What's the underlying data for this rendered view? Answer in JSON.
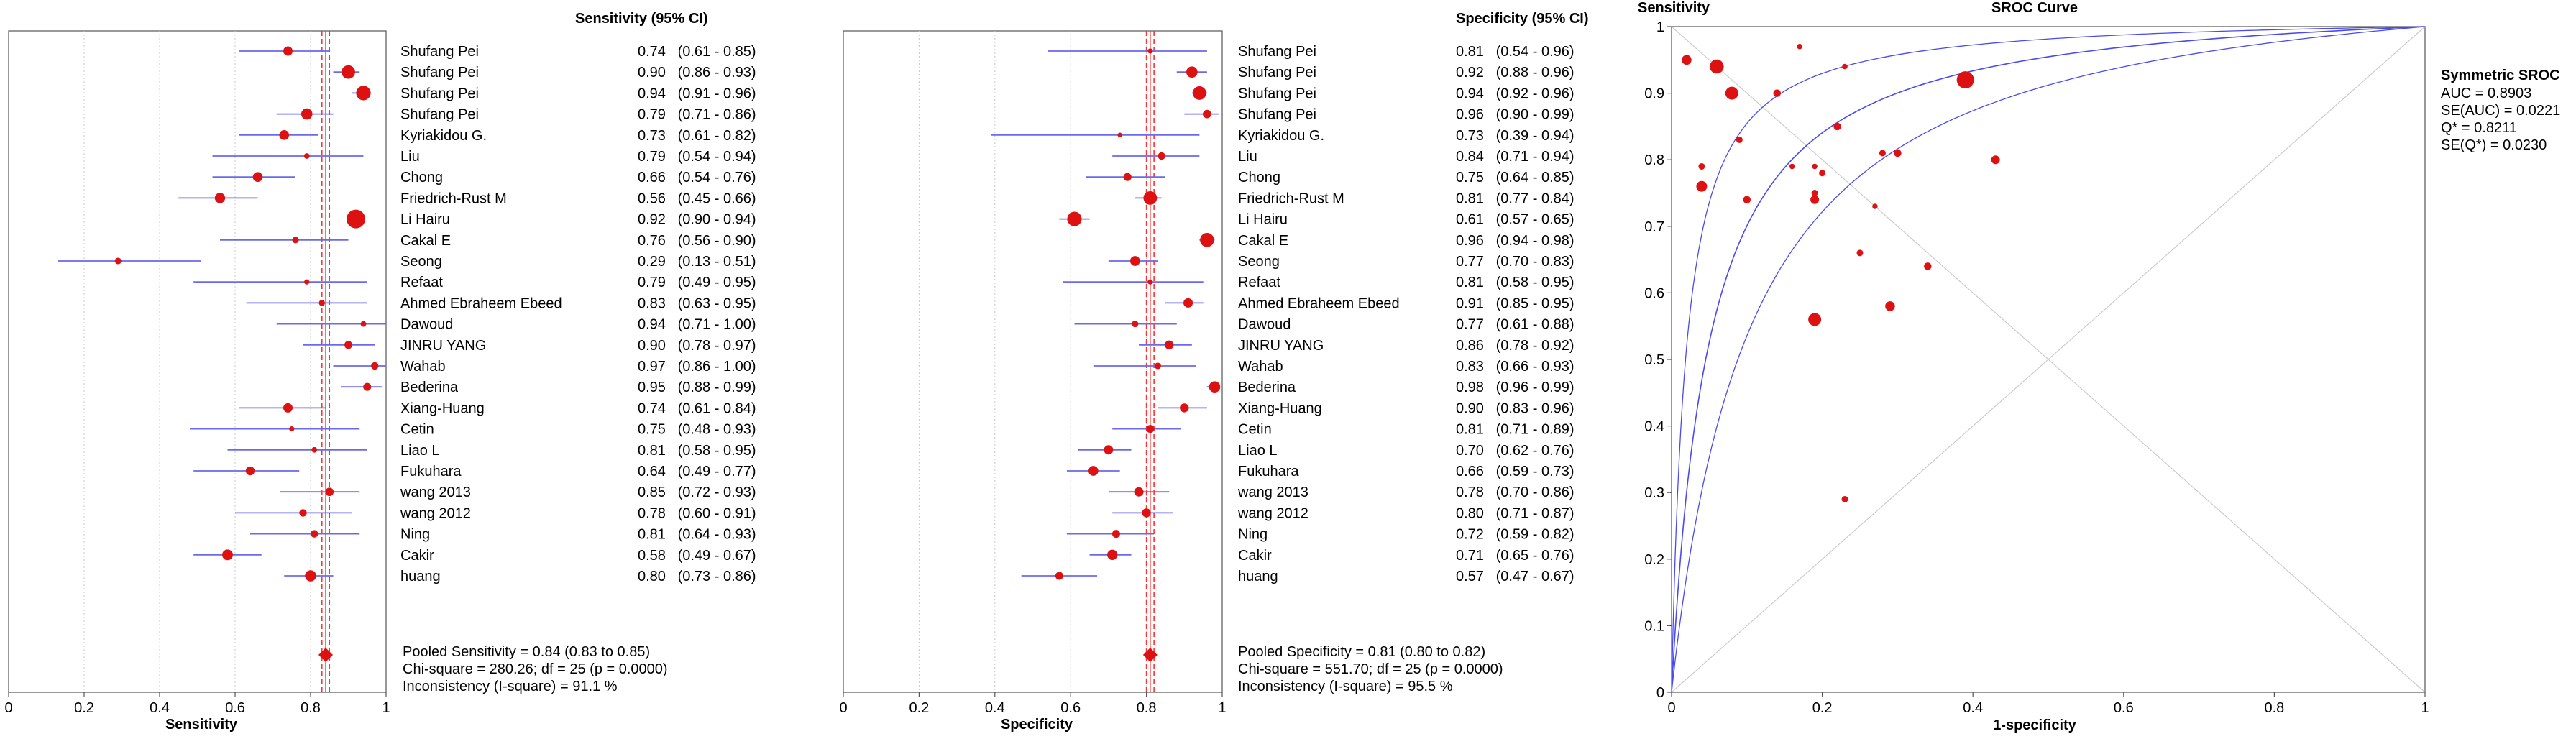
{
  "colors": {
    "point": "#dd1111",
    "ci_line": "#6a6aee",
    "pooled_line": "#ff3333",
    "grid": "#c8c8c8",
    "axis": "#555555",
    "sroc_curve": "#4a4aee",
    "diagonal": "#cccccc"
  },
  "chart_data": [
    {
      "type": "forest",
      "id": "sensitivity",
      "xlabel": "Sensitivity",
      "xlim": [
        0,
        1
      ],
      "xticks": [
        "0",
        "0.2",
        "0.4",
        "0.6",
        "0.8",
        "1"
      ],
      "tick_values": [
        0,
        0.2,
        0.4,
        0.6,
        0.8,
        1
      ],
      "column_header": "Sensitivity (95% CI)",
      "studies": [
        {
          "name": "Shufang Pei",
          "est": 0.74,
          "lo": 0.61,
          "hi": 0.85,
          "text": "0.74   (0.61 - 0.85)",
          "weight": 1.0
        },
        {
          "name": "Shufang Pei",
          "est": 0.9,
          "lo": 0.86,
          "hi": 0.93,
          "text": "0.90   (0.86 - 0.93)",
          "weight": 1.45
        },
        {
          "name": "Shufang Pei",
          "est": 0.94,
          "lo": 0.91,
          "hi": 0.96,
          "text": "0.94   (0.91 - 0.96)",
          "weight": 1.55
        },
        {
          "name": "Shufang Pei",
          "est": 0.79,
          "lo": 0.71,
          "hi": 0.86,
          "text": "0.79   (0.71 - 0.86)",
          "weight": 1.2
        },
        {
          "name": "Kyriakidou G.",
          "est": 0.73,
          "lo": 0.61,
          "hi": 0.82,
          "text": "0.73   (0.61 - 0.82)",
          "weight": 1.05
        },
        {
          "name": "Liu",
          "est": 0.79,
          "lo": 0.54,
          "hi": 0.94,
          "text": "0.79   (0.54 - 0.94)",
          "weight": 0.6
        },
        {
          "name": "Chong",
          "est": 0.66,
          "lo": 0.54,
          "hi": 0.76,
          "text": "0.66   (0.54 - 0.76)",
          "weight": 1.05
        },
        {
          "name": "Friedrich-Rust M",
          "est": 0.56,
          "lo": 0.45,
          "hi": 0.66,
          "text": "0.56   (0.45 - 0.66)",
          "weight": 1.1
        },
        {
          "name": "Li Hairu",
          "est": 0.92,
          "lo": 0.9,
          "hi": 0.94,
          "text": "0.92   (0.90 - 0.94)",
          "weight": 2.0
        },
        {
          "name": "Cakal E",
          "est": 0.76,
          "lo": 0.56,
          "hi": 0.9,
          "text": "0.76   (0.56 - 0.90)",
          "weight": 0.7
        },
        {
          "name": "Seong",
          "est": 0.29,
          "lo": 0.13,
          "hi": 0.51,
          "text": "0.29   (0.13 - 0.51)",
          "weight": 0.7
        },
        {
          "name": "Refaat",
          "est": 0.79,
          "lo": 0.49,
          "hi": 0.95,
          "text": "0.79   (0.49 - 0.95)",
          "weight": 0.55
        },
        {
          "name": "Ahmed Ebraheem Ebeed",
          "est": 0.83,
          "lo": 0.63,
          "hi": 0.95,
          "text": "0.83   (0.63 - 0.95)",
          "weight": 0.65
        },
        {
          "name": "Dawoud",
          "est": 0.94,
          "lo": 0.71,
          "hi": 1.0,
          "text": "0.94   (0.71 - 1.00)",
          "weight": 0.6
        },
        {
          "name": "JINRU YANG",
          "est": 0.9,
          "lo": 0.78,
          "hi": 0.97,
          "text": "0.90   (0.78 - 0.97)",
          "weight": 0.85
        },
        {
          "name": "Wahab",
          "est": 0.97,
          "lo": 0.86,
          "hi": 1.0,
          "text": "0.97   (0.86 - 1.00)",
          "weight": 0.8
        },
        {
          "name": "Bederina",
          "est": 0.95,
          "lo": 0.88,
          "hi": 0.99,
          "text": "0.95   (0.88 - 0.99)",
          "weight": 0.85
        },
        {
          "name": "Xiang-Huang",
          "est": 0.74,
          "lo": 0.61,
          "hi": 0.84,
          "text": "0.74   (0.61 - 0.84)",
          "weight": 1.0
        },
        {
          "name": "Cetin",
          "est": 0.75,
          "lo": 0.48,
          "hi": 0.93,
          "text": "0.75   (0.48 - 0.93)",
          "weight": 0.55
        },
        {
          "name": "Liao L",
          "est": 0.81,
          "lo": 0.58,
          "hi": 0.95,
          "text": "0.81   (0.58 - 0.95)",
          "weight": 0.6
        },
        {
          "name": "Fukuhara",
          "est": 0.64,
          "lo": 0.49,
          "hi": 0.77,
          "text": "0.64   (0.49 - 0.77)",
          "weight": 0.95
        },
        {
          "name": "wang 2013",
          "est": 0.85,
          "lo": 0.72,
          "hi": 0.93,
          "text": "0.85   (0.72 - 0.93)",
          "weight": 0.9
        },
        {
          "name": "wang 2012",
          "est": 0.78,
          "lo": 0.6,
          "hi": 0.91,
          "text": "0.78   (0.60 - 0.91)",
          "weight": 0.8
        },
        {
          "name": "Ning",
          "est": 0.81,
          "lo": 0.64,
          "hi": 0.93,
          "text": "0.81   (0.64 - 0.93)",
          "weight": 0.8
        },
        {
          "name": "Cakir",
          "est": 0.58,
          "lo": 0.49,
          "hi": 0.67,
          "text": "0.58   (0.49 - 0.67)",
          "weight": 1.15
        },
        {
          "name": "huang",
          "est": 0.8,
          "lo": 0.73,
          "hi": 0.86,
          "text": "0.80   (0.73 - 0.86)",
          "weight": 1.2
        }
      ],
      "pooled": {
        "est": 0.84,
        "lo": 0.83,
        "hi": 0.85
      },
      "summary": [
        "Pooled Sensitivity = 0.84 (0.83 to 0.85)",
        "Chi-square = 280.26; df =  25 (p = 0.0000)",
        "Inconsistency (I-square) = 91.1 %"
      ]
    },
    {
      "type": "forest",
      "id": "specificity",
      "xlabel": "Specificity",
      "xlim": [
        0,
        1
      ],
      "xticks": [
        "0",
        "0.2",
        "0.4",
        "0.6",
        "0.8",
        "1"
      ],
      "tick_values": [
        0,
        0.2,
        0.4,
        0.6,
        0.8,
        1
      ],
      "column_header": "Specificity (95% CI)",
      "studies": [
        {
          "name": "Shufang Pei",
          "est": 0.81,
          "lo": 0.54,
          "hi": 0.96,
          "text": "0.81   (0.54 - 0.96)",
          "weight": 0.55
        },
        {
          "name": "Shufang Pei",
          "est": 0.92,
          "lo": 0.88,
          "hi": 0.96,
          "text": "0.92   (0.88 - 0.96)",
          "weight": 1.2
        },
        {
          "name": "Shufang Pei",
          "est": 0.94,
          "lo": 0.92,
          "hi": 0.96,
          "text": "0.94   (0.92 - 0.96)",
          "weight": 1.45
        },
        {
          "name": "Shufang Pei",
          "est": 0.96,
          "lo": 0.9,
          "hi": 0.99,
          "text": "0.96   (0.90 - 0.99)",
          "weight": 0.9
        },
        {
          "name": "Kyriakidou G.",
          "est": 0.73,
          "lo": 0.39,
          "hi": 0.94,
          "text": "0.73   (0.39 - 0.94)",
          "weight": 0.5
        },
        {
          "name": "Liu",
          "est": 0.84,
          "lo": 0.71,
          "hi": 0.94,
          "text": "0.84   (0.71 - 0.94)",
          "weight": 0.8
        },
        {
          "name": "Chong",
          "est": 0.75,
          "lo": 0.64,
          "hi": 0.85,
          "text": "0.75   (0.64 - 0.85)",
          "weight": 0.85
        },
        {
          "name": "Friedrich-Rust M",
          "est": 0.81,
          "lo": 0.77,
          "hi": 0.84,
          "text": "0.81   (0.77 - 0.84)",
          "weight": 1.45
        },
        {
          "name": "Li Hairu",
          "est": 0.61,
          "lo": 0.57,
          "hi": 0.65,
          "text": "0.61   (0.57 - 0.65)",
          "weight": 1.55
        },
        {
          "name": "Cakal E",
          "est": 0.96,
          "lo": 0.94,
          "hi": 0.98,
          "text": "0.96   (0.94 - 0.98)",
          "weight": 1.5
        },
        {
          "name": "Seong",
          "est": 0.77,
          "lo": 0.7,
          "hi": 0.83,
          "text": "0.77   (0.70 - 0.83)",
          "weight": 1.05
        },
        {
          "name": "Refaat",
          "est": 0.81,
          "lo": 0.58,
          "hi": 0.95,
          "text": "0.81   (0.58 - 0.95)",
          "weight": 0.55
        },
        {
          "name": "Ahmed Ebraheem Ebeed",
          "est": 0.91,
          "lo": 0.85,
          "hi": 0.95,
          "text": "0.91   (0.85 - 0.95)",
          "weight": 1.0
        },
        {
          "name": "Dawoud",
          "est": 0.77,
          "lo": 0.61,
          "hi": 0.88,
          "text": "0.77   (0.61 - 0.88)",
          "weight": 0.7
        },
        {
          "name": "JINRU YANG",
          "est": 0.86,
          "lo": 0.78,
          "hi": 0.92,
          "text": "0.86   (0.78 - 0.92)",
          "weight": 0.95
        },
        {
          "name": "Wahab",
          "est": 0.83,
          "lo": 0.66,
          "hi": 0.93,
          "text": "0.83   (0.66 - 0.93)",
          "weight": 0.7
        },
        {
          "name": "Bederina",
          "est": 0.98,
          "lo": 0.96,
          "hi": 0.99,
          "text": "0.98   (0.96 - 0.99)",
          "weight": 1.2
        },
        {
          "name": "Xiang-Huang",
          "est": 0.9,
          "lo": 0.83,
          "hi": 0.96,
          "text": "0.90   (0.83 - 0.96)",
          "weight": 0.95
        },
        {
          "name": "Cetin",
          "est": 0.81,
          "lo": 0.71,
          "hi": 0.89,
          "text": "0.81   (0.71 - 0.89)",
          "weight": 0.85
        },
        {
          "name": "Liao L",
          "est": 0.7,
          "lo": 0.62,
          "hi": 0.76,
          "text": "0.70   (0.62 - 0.76)",
          "weight": 1.0
        },
        {
          "name": "Fukuhara",
          "est": 0.66,
          "lo": 0.59,
          "hi": 0.73,
          "text": "0.66   (0.59 - 0.73)",
          "weight": 1.05
        },
        {
          "name": "wang 2013",
          "est": 0.78,
          "lo": 0.7,
          "hi": 0.86,
          "text": "0.78   (0.70 - 0.86)",
          "weight": 1.0
        },
        {
          "name": "wang 2012",
          "est": 0.8,
          "lo": 0.71,
          "hi": 0.87,
          "text": "0.80   (0.71 - 0.87)",
          "weight": 0.95
        },
        {
          "name": "Ning",
          "est": 0.72,
          "lo": 0.59,
          "hi": 0.82,
          "text": "0.72   (0.59 - 0.82)",
          "weight": 0.85
        },
        {
          "name": "Cakir",
          "est": 0.71,
          "lo": 0.65,
          "hi": 0.76,
          "text": "0.71   (0.65 - 0.76)",
          "weight": 1.1
        },
        {
          "name": "huang",
          "est": 0.57,
          "lo": 0.47,
          "hi": 0.67,
          "text": "0.57   (0.47 - 0.67)",
          "weight": 0.85
        }
      ],
      "pooled": {
        "est": 0.81,
        "lo": 0.8,
        "hi": 0.82
      },
      "summary": [
        "Pooled Specificity = 0.81 (0.80 to 0.82)",
        "Chi-square = 551.70; df =  25 (p = 0.0000)",
        "Inconsistency (I-square) = 95.5 %"
      ]
    },
    {
      "type": "scatter",
      "id": "sroc",
      "title": "SROC Curve",
      "ylabel": "Sensitivity",
      "xlabel": "1-specificity",
      "xlim": [
        0,
        1
      ],
      "ylim": [
        0,
        1
      ],
      "xticks": [
        "0",
        "0.2",
        "0.4",
        "0.6",
        "0.8",
        "1"
      ],
      "yticks": [
        "0",
        "0.1",
        "0.2",
        "0.3",
        "0.4",
        "0.5",
        "0.6",
        "0.7",
        "0.8",
        "0.9",
        "1"
      ],
      "tick_values": [
        0,
        0.2,
        0.4,
        0.6,
        0.8,
        1
      ],
      "ytick_values": [
        0,
        0.1,
        0.2,
        0.3,
        0.4,
        0.5,
        0.6,
        0.7,
        0.8,
        0.9,
        1
      ],
      "auc": 0.8903,
      "q_star": 0.8211,
      "legend_title": "Symmetric SROC",
      "legend_lines": [
        "AUC = 0.8903",
        "SE(AUC) = 0.0221",
        "Q* = 0.8211",
        "SE(Q*) = 0.0230"
      ],
      "points": [
        {
          "fpr": 0.19,
          "sens": 0.74,
          "weight": 0.8
        },
        {
          "fpr": 0.08,
          "sens": 0.9,
          "weight": 1.2
        },
        {
          "fpr": 0.06,
          "sens": 0.94,
          "weight": 1.3
        },
        {
          "fpr": 0.04,
          "sens": 0.79,
          "weight": 0.6
        },
        {
          "fpr": 0.27,
          "sens": 0.73,
          "weight": 0.5
        },
        {
          "fpr": 0.16,
          "sens": 0.79,
          "weight": 0.5
        },
        {
          "fpr": 0.25,
          "sens": 0.66,
          "weight": 0.6
        },
        {
          "fpr": 0.19,
          "sens": 0.56,
          "weight": 1.2
        },
        {
          "fpr": 0.39,
          "sens": 0.92,
          "weight": 1.6
        },
        {
          "fpr": 0.04,
          "sens": 0.76,
          "weight": 1.0
        },
        {
          "fpr": 0.23,
          "sens": 0.29,
          "weight": 0.6
        },
        {
          "fpr": 0.19,
          "sens": 0.79,
          "weight": 0.5
        },
        {
          "fpr": 0.09,
          "sens": 0.83,
          "weight": 0.6
        },
        {
          "fpr": 0.23,
          "sens": 0.94,
          "weight": 0.5
        },
        {
          "fpr": 0.14,
          "sens": 0.9,
          "weight": 0.7
        },
        {
          "fpr": 0.17,
          "sens": 0.97,
          "weight": 0.5
        },
        {
          "fpr": 0.02,
          "sens": 0.95,
          "weight": 0.9
        },
        {
          "fpr": 0.1,
          "sens": 0.74,
          "weight": 0.7
        },
        {
          "fpr": 0.19,
          "sens": 0.75,
          "weight": 0.6
        },
        {
          "fpr": 0.3,
          "sens": 0.81,
          "weight": 0.7
        },
        {
          "fpr": 0.34,
          "sens": 0.64,
          "weight": 0.7
        },
        {
          "fpr": 0.22,
          "sens": 0.85,
          "weight": 0.7
        },
        {
          "fpr": 0.2,
          "sens": 0.78,
          "weight": 0.6
        },
        {
          "fpr": 0.28,
          "sens": 0.81,
          "weight": 0.6
        },
        {
          "fpr": 0.29,
          "sens": 0.58,
          "weight": 0.9
        },
        {
          "fpr": 0.43,
          "sens": 0.8,
          "weight": 0.8
        }
      ]
    }
  ]
}
